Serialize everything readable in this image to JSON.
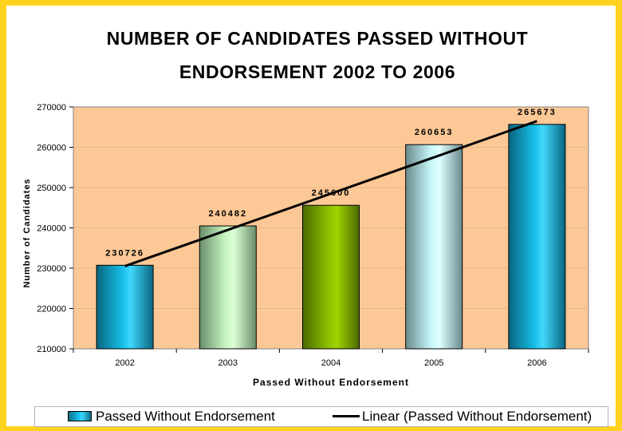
{
  "chart_data": {
    "type": "bar",
    "title": [
      "NUMBER OF CANDIDATES PASSED WITHOUT",
      "ENDORSEMENT 2002 TO 2006"
    ],
    "xlabel": "Passed Without Endorsement",
    "ylabel": "Number of Candidates",
    "categories": [
      "2002",
      "2003",
      "2004",
      "2005",
      "2006"
    ],
    "series": [
      {
        "name": "Passed Without Endorsement",
        "values": [
          230726,
          240482,
          245600,
          260653,
          265673
        ],
        "data_labels": [
          "230726",
          "240482",
          "245600",
          "260653",
          "265673"
        ]
      }
    ],
    "trendline": {
      "name": "Linear (Passed Without Endorsement)",
      "type": "linear",
      "start_value": 230500,
      "end_value": 266500
    },
    "ylim": [
      210000,
      270000
    ],
    "yticks": [
      210000,
      220000,
      230000,
      240000,
      250000,
      260000,
      270000
    ],
    "grid": true,
    "legend_position": "bottom",
    "colors": {
      "plot_background": "#fcc896",
      "frame": "#ffd21f",
      "bars": [
        "#14b4e0",
        "#c8f8c0",
        "#8cbe00",
        "#c8f8f8",
        "#14b4e0"
      ],
      "trendline": "#000000"
    }
  }
}
